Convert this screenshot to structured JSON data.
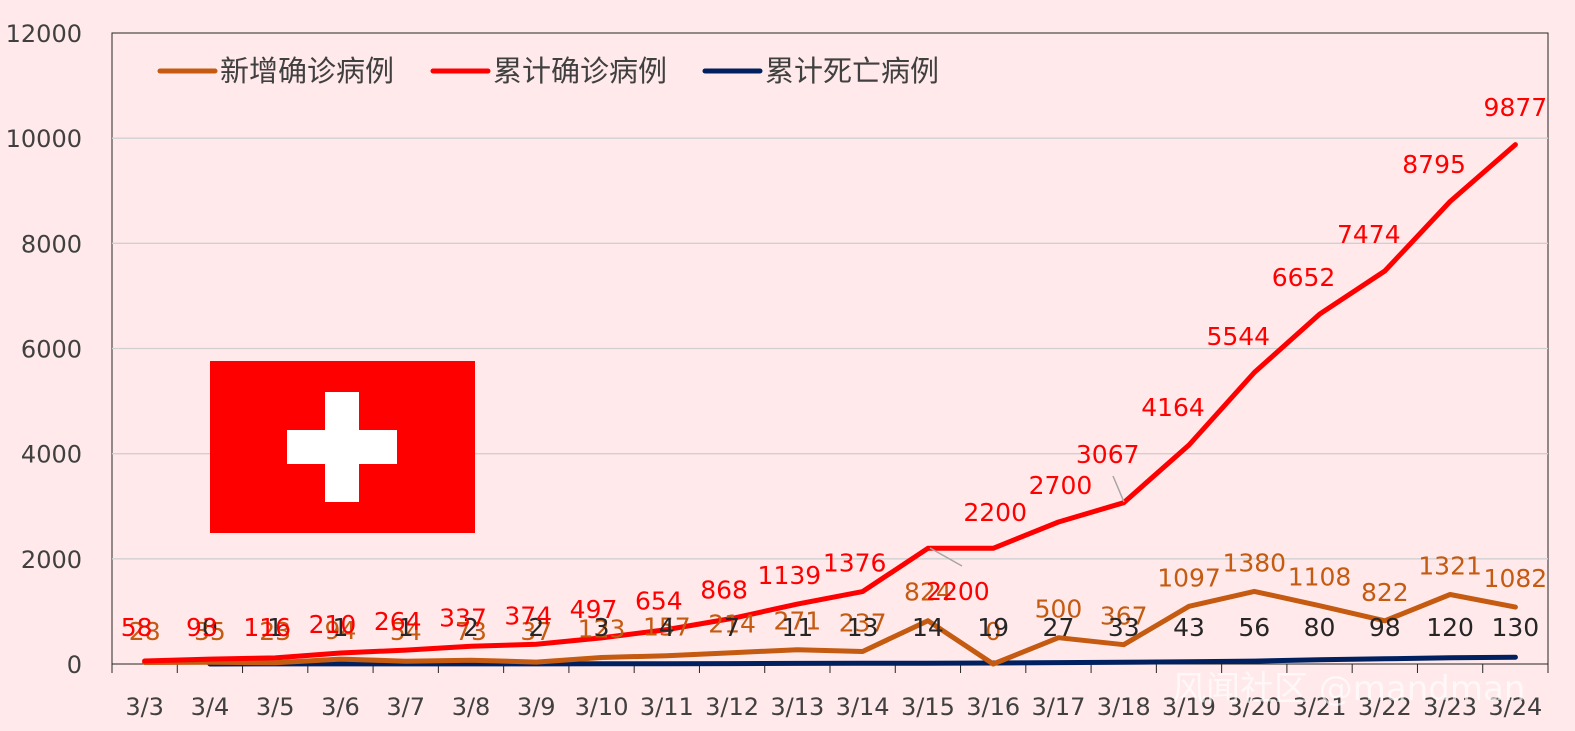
{
  "chart_data": {
    "type": "line",
    "categories": [
      "3/3",
      "3/4",
      "3/5",
      "3/6",
      "3/7",
      "3/8",
      "3/9",
      "3/10",
      "3/11",
      "3/12",
      "3/13",
      "3/14",
      "3/15",
      "3/16",
      "3/17",
      "3/18",
      "3/19",
      "3/20",
      "3/21",
      "3/22",
      "3/23",
      "3/24"
    ],
    "series": [
      {
        "name": "新增确诊病例",
        "color": "#c55a11",
        "values": [
          28,
          35,
          23,
          94,
          54,
          73,
          37,
          123,
          157,
          214,
          271,
          237,
          824,
          0,
          500,
          367,
          1097,
          1380,
          1108,
          822,
          1321,
          1082
        ]
      },
      {
        "name": "累计确诊病例",
        "color": "#ff0000",
        "values": [
          58,
          93,
          116,
          210,
          264,
          337,
          374,
          497,
          654,
          868,
          1139,
          1376,
          2200,
          2200,
          2700,
          3067,
          4164,
          5544,
          6652,
          7474,
          8795,
          9877
        ]
      },
      {
        "name": "累计死亡病例",
        "color": "#002060",
        "values": [
          null,
          0,
          1,
          1,
          1,
          2,
          2,
          3,
          4,
          7,
          11,
          13,
          14,
          19,
          27,
          33,
          43,
          56,
          80,
          98,
          120,
          130
        ]
      }
    ],
    "ylim": [
      0,
      12000
    ],
    "yticks": [
      0,
      2000,
      4000,
      6000,
      8000,
      10000,
      12000
    ],
    "grid": true,
    "legend_position": "top-left",
    "title": "",
    "xlabel": "",
    "ylabel": ""
  },
  "flag": {
    "name": "Switzerland",
    "bg_color": "#ff0000",
    "cross_color": "#ffffff"
  },
  "watermark": "风闻社区 @mandman"
}
